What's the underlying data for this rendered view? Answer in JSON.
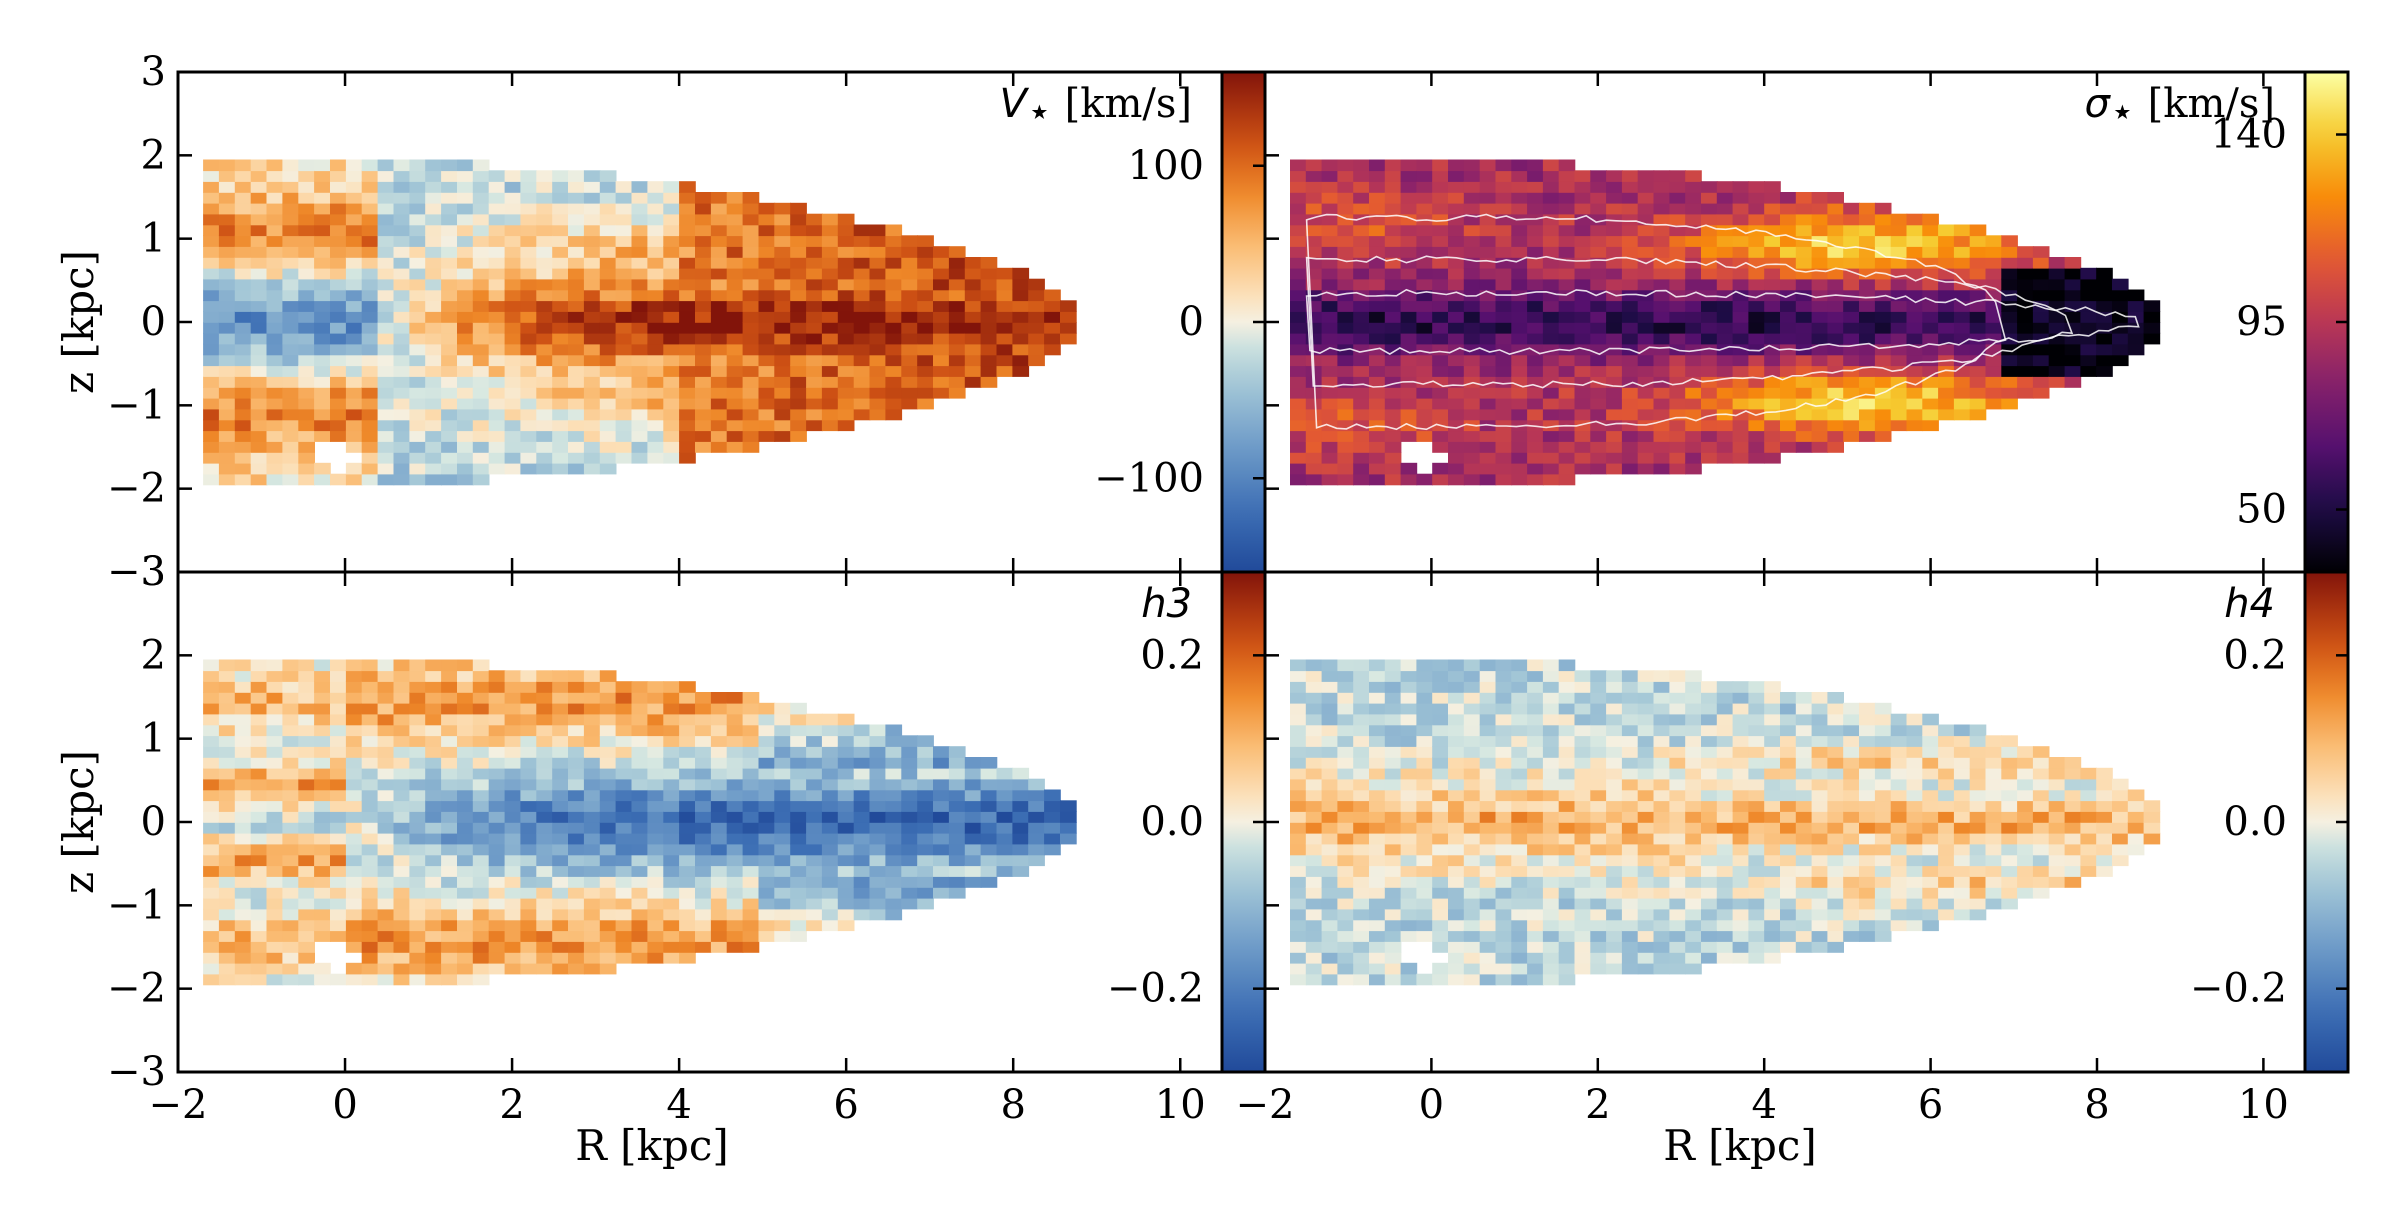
{
  "chart_data": {
    "type": "heatmap",
    "x_axis": {
      "label": "R [kpc]",
      "range": [
        -2,
        10.5
      ],
      "ticks": [
        -2,
        0,
        2,
        4,
        6,
        8,
        10
      ],
      "tick_labels": [
        "−2",
        "0",
        "2",
        "4",
        "6",
        "8",
        "10"
      ]
    },
    "y_axis": {
      "label": "z [kpc]",
      "range": [
        -3,
        3
      ],
      "ticks": [
        -3,
        -2,
        -1,
        0,
        1,
        2,
        3
      ],
      "tick_labels": [
        "−3",
        "−2",
        "−1",
        "0",
        "1",
        "2",
        "3"
      ]
    },
    "panels": [
      {
        "id": "velocity",
        "label": "V",
        "label_sub": "⋆",
        "label_unit": " [km/s]",
        "colormap": "diverging-blue-white-orange-red",
        "colorbar": {
          "range": [
            -160,
            160
          ],
          "ticks": [
            100,
            0,
            -100
          ],
          "tick_labels": [
            "100",
            "0",
            "−100"
          ]
        },
        "notes": "rotation pattern: blue near R<0 in midplane, red for R>2 in midplane, orange at |z|~1"
      },
      {
        "id": "dispersion",
        "label": "σ",
        "label_sub": "⋆",
        "label_unit": " [km/s]",
        "colormap": "inferno",
        "colorbar": {
          "range": [
            35,
            155
          ],
          "ticks": [
            140,
            95,
            50
          ],
          "tick_labels": [
            "140",
            "95",
            "50"
          ]
        },
        "notes": "low dispersion in the midplane, high dispersion at |z|~1 near R~5-6, white flux contours"
      },
      {
        "id": "h3",
        "label": "h3",
        "label_sub": "",
        "label_unit": "",
        "colormap": "diverging-blue-white-orange-red",
        "colorbar": {
          "range": [
            -0.3,
            0.3
          ],
          "ticks": [
            0.2,
            0.0,
            -0.2
          ],
          "tick_labels": [
            "0.2",
            "0.0",
            "−0.2"
          ]
        },
        "notes": "anti-correlated with V: blue in the midplane at R>1, orange at |z|~1.5"
      },
      {
        "id": "h4",
        "label": "h4",
        "label_sub": "",
        "label_unit": "",
        "colormap": "diverging-blue-white-orange-red",
        "colorbar": {
          "range": [
            -0.3,
            0.3
          ],
          "ticks": [
            0.2,
            0.0,
            -0.2
          ],
          "tick_labels": [
            "0.2",
            "0.0",
            "−0.2"
          ]
        },
        "notes": "positive (orange) in the midplane and at z~±0.7, mostly weakly negative elsewhere"
      }
    ]
  }
}
